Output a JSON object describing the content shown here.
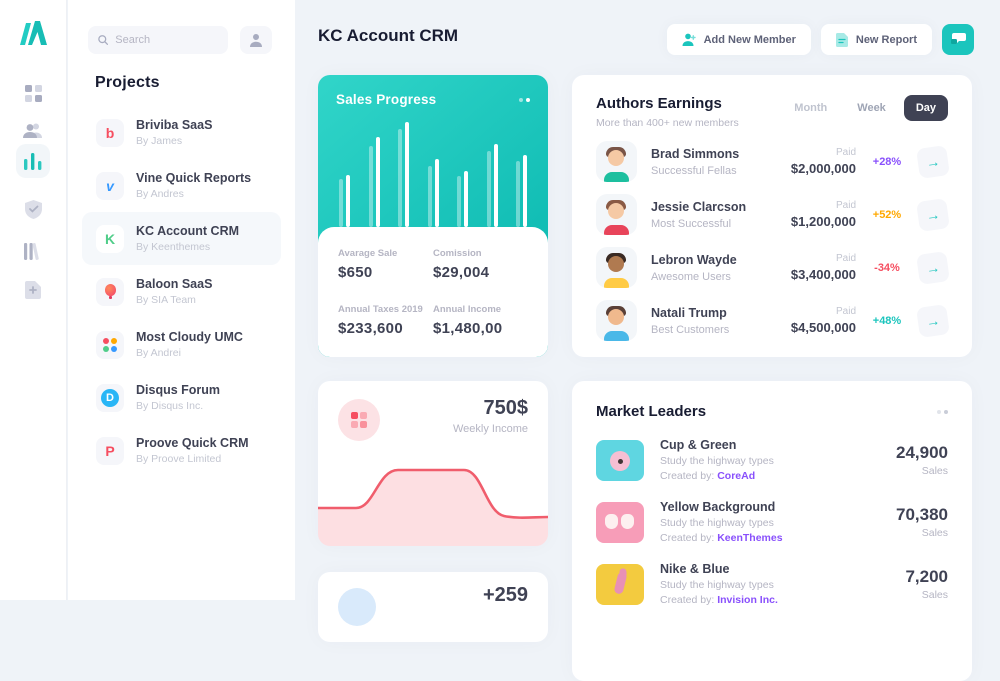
{
  "colors": {
    "accent_teal": "#1BC5BD",
    "purple": "#8950FC",
    "orange": "#FFA800",
    "red": "#F64E60",
    "dark": "#3F4254",
    "muted": "#B5B5C3",
    "main_bg": "#EFF3F8"
  },
  "rail": {
    "icons": [
      "logo",
      "grid",
      "users",
      "bar-chart-active",
      "shield-check",
      "library",
      "file-plus"
    ]
  },
  "sidebar": {
    "search": {
      "placeholder": "Search"
    },
    "heading": "Projects",
    "projects": [
      {
        "initial": "b",
        "icon_color": "#F64E60",
        "title": "Briviba SaaS",
        "subtitle": "By James",
        "active": false
      },
      {
        "initial": "v",
        "icon_color": "#3699FF",
        "title": "Vine Quick Reports",
        "subtitle": "By Andres",
        "active": false
      },
      {
        "initial": "K",
        "icon_color": "#50CD89",
        "title": "KC Account CRM",
        "subtitle": "By Keenthemes",
        "active": true
      },
      {
        "initial": "balloon",
        "icon_color": "#F2416B",
        "title": "Baloon SaaS",
        "subtitle": "By SIA Team",
        "active": false
      },
      {
        "initial": "dots",
        "icon_color": "#FFA800",
        "title": "Most Cloudy UMC",
        "subtitle": "By Andrei",
        "active": false
      },
      {
        "initial": "D",
        "icon_color": "#29B6F6",
        "title": "Disqus Forum",
        "subtitle": "By Disqus Inc.",
        "active": false
      },
      {
        "initial": "P",
        "icon_color": "#F64E60",
        "title": "Proove Quick CRM",
        "subtitle": "By Proove Limited",
        "active": false
      }
    ]
  },
  "header": {
    "title": "KC Account CRM",
    "add_member": "Add New Member",
    "new_report": "New Report"
  },
  "sales": {
    "title": "Sales Progress",
    "stats": [
      {
        "label": "Avarage Sale",
        "value": "$650"
      },
      {
        "label": "Comission",
        "value": "$29,004"
      },
      {
        "label": "Annual Taxes 2019",
        "value": "$233,600"
      },
      {
        "label": "Annual Income",
        "value": "$1,480,00"
      }
    ]
  },
  "earnings": {
    "title": "Authors Earnings",
    "subtitle": "More than 400+ new members",
    "tabs": [
      "Month",
      "Week",
      "Day"
    ],
    "active_tab": "Day",
    "rows": [
      {
        "name": "Brad Simmons",
        "desc": "Successful Fellas",
        "paid_label": "Paid",
        "amount": "$2,000,000",
        "delta": "+28%",
        "delta_color": "#8950FC",
        "avatar": {
          "hair": "#7A5547",
          "skin": "#F5C9A4",
          "shirt": "#1DBF9F"
        }
      },
      {
        "name": "Jessie Clarcson",
        "desc": "Most Successful",
        "paid_label": "Paid",
        "amount": "$1,200,000",
        "delta": "+52%",
        "delta_color": "#FFA800",
        "avatar": {
          "hair": "#8A5A44",
          "skin": "#F5C9A4",
          "shirt": "#E8445A"
        }
      },
      {
        "name": "Lebron Wayde",
        "desc": "Awesome Users",
        "paid_label": "Paid",
        "amount": "$3,400,000",
        "delta": "-34%",
        "delta_color": "#F64E60",
        "avatar": {
          "hair": "#3A2A23",
          "skin": "#B07A50",
          "shirt": "#FFCB45"
        }
      },
      {
        "name": "Natali Trump",
        "desc": "Best Customers",
        "paid_label": "Paid",
        "amount": "$4,500,000",
        "delta": "+48%",
        "delta_color": "#1BC5BD",
        "avatar": {
          "hair": "#5A4037",
          "skin": "#F0B98D",
          "shirt": "#4AB8E8"
        }
      }
    ]
  },
  "weekly": {
    "amount": "750$",
    "label": "Weekly Income"
  },
  "leaders": {
    "title": "Market Leaders",
    "rows": [
      {
        "title": "Cup & Green",
        "desc": "Study the highway types",
        "created_prefix": "Created by:",
        "creator": "CoreAd",
        "sales": "24,900",
        "sales_label": "Sales",
        "thumb_color": "#5FD6E1",
        "thumb_kind": "donut"
      },
      {
        "title": "Yellow Background",
        "desc": "Study the highway types",
        "created_prefix": "Created by:",
        "creator": "KeenThemes",
        "sales": "70,380",
        "sales_label": "Sales",
        "thumb_color": "#F79DB8",
        "thumb_kind": "masks"
      },
      {
        "title": "Nike & Blue",
        "desc": "Study the highway types",
        "created_prefix": "Created by:",
        "creator": "Invision Inc.",
        "sales": "7,200",
        "sales_label": "Sales",
        "thumb_color": "#F3CB3F",
        "thumb_kind": "hand"
      }
    ]
  },
  "partial": {
    "value": "+259"
  },
  "chart_data": [
    {
      "type": "bar",
      "title": "Sales Progress",
      "categories": [
        "1",
        "2",
        "3",
        "4",
        "5",
        "6",
        "7"
      ],
      "series": [
        {
          "name": "previous",
          "values": [
            46,
            77,
            93,
            58,
            49,
            72,
            63
          ]
        },
        {
          "name": "current",
          "values": [
            50,
            86,
            100,
            65,
            53,
            79,
            69
          ]
        }
      ],
      "ylim": [
        0,
        100
      ],
      "legend": "none",
      "colors": {
        "previous": "rgba(255,255,255,0.38)",
        "current": "#FFFFFF"
      }
    },
    {
      "type": "area",
      "title": "Weekly Income",
      "value": 750,
      "x": [
        0,
        1,
        2,
        3,
        4,
        5,
        6
      ],
      "y": [
        38,
        38,
        38,
        76,
        76,
        30,
        29
      ],
      "color": "#F64E60",
      "fill_opacity": 0.18
    }
  ]
}
